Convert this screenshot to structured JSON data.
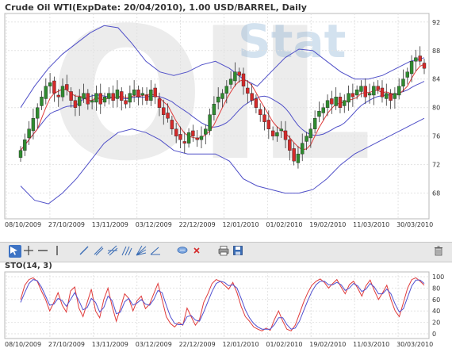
{
  "title": "Crude Oil WTI(ExpDate: 20/04/2010), 1.00 USD/BARREL, Daily",
  "watermark": {
    "left": "OIL",
    "right": "Stat"
  },
  "sto_title": "STO(14, 3)",
  "toolbar": {
    "tools": [
      "cursor-icon",
      "crosshair-icon",
      "horizontal-line-icon",
      "vertical-line-icon",
      "trendline-icon",
      "ray-icon",
      "parallel-channel-icon",
      "fibonacci-icon",
      "fan-icon",
      "text-balloon-icon",
      "delete-object-icon",
      "print-icon",
      "save-icon",
      "trash-icon"
    ]
  },
  "colors": {
    "up": "#2f8b2f",
    "down": "#d42a2a",
    "bands": "#5050c8",
    "ma": "#e03a3a",
    "sto_k": "#e03a3a",
    "sto_d": "#5050d0"
  },
  "chart_data": [
    {
      "type": "candlestick",
      "title": "Crude Oil WTI(ExpDate: 20/04/2010), 1.00 USD/BARREL, Daily",
      "x_tick_labels": [
        "08/10/2009",
        "27/10/2009",
        "13/11/2009",
        "03/12/2009",
        "22/12/2009",
        "12/01/2010",
        "01/02/2010",
        "19/02/2010",
        "11/03/2010",
        "30/03/2010"
      ],
      "y_tick_labels": [
        "92",
        "88",
        "84",
        "80",
        "76",
        "72",
        "68"
      ],
      "ylim": [
        64.4,
        93.2
      ],
      "close_approx": [
        74,
        75.5,
        77,
        78.5,
        80,
        81.5,
        83,
        83.5,
        82,
        81.5,
        83,
        82.5,
        81,
        80,
        81.5,
        82,
        80.5,
        81,
        82,
        80.5,
        81.5,
        82,
        81,
        82.5,
        81,
        80.5,
        82,
        82.5,
        81.5,
        82,
        81,
        82.5,
        81.5,
        80,
        79,
        78.5,
        77,
        76,
        75.5,
        75,
        76.5,
        76,
        75.5,
        76,
        77,
        79,
        80.5,
        81.5,
        82,
        83,
        84,
        85,
        84.5,
        83,
        82,
        81,
        80,
        79,
        78,
        77,
        76,
        76.5,
        77,
        75.5,
        74,
        72.5,
        73.5,
        75,
        76,
        77,
        78.5,
        79.5,
        80,
        81,
        80.5,
        81.5,
        80,
        81,
        82,
        81.5,
        82.5,
        83,
        81.5,
        82,
        83,
        82.5,
        81.5,
        82,
        81,
        82,
        83,
        84,
        85,
        86.5,
        87,
        86.5,
        85.5
      ],
      "bollinger_upper_approx": [
        80,
        83,
        85.5,
        87.5,
        89,
        90.5,
        91.5,
        91.2,
        89,
        86.5,
        85,
        84.5,
        85,
        86,
        86.5,
        85.5,
        84,
        83,
        85,
        87,
        88.2,
        88,
        86.5,
        85,
        84,
        84,
        84.5,
        85.5,
        86.5,
        87
      ],
      "bollinger_lower_approx": [
        69,
        67,
        66.5,
        68,
        70,
        72.5,
        75,
        76.5,
        77,
        76.5,
        75.5,
        74,
        73.5,
        73.5,
        73.5,
        72.5,
        70,
        69,
        68.5,
        68,
        68,
        68.5,
        70,
        72,
        73.5,
        74.5,
        75.5,
        76.5,
        77.5,
        78.5
      ]
    },
    {
      "type": "line",
      "title": "STO(14, 3)",
      "x_tick_labels": [
        "08/10/2009",
        "27/10/2009",
        "13/11/2009",
        "03/12/2009",
        "22/12/2009",
        "12/01/2010",
        "01/02/2010",
        "19/02/2010",
        "11/03/2010",
        "30/03/2010"
      ],
      "y_tick_labels": [
        "100",
        "80",
        "60",
        "40",
        "20",
        "0"
      ],
      "ylim": [
        0,
        100
      ],
      "series": [
        {
          "values": [
            60,
            85,
            95,
            98,
            92,
            75,
            60,
            40,
            55,
            72,
            50,
            38,
            75,
            82,
            45,
            30,
            55,
            78,
            40,
            28,
            60,
            80,
            48,
            22,
            45,
            70,
            62,
            40,
            58,
            66,
            44,
            52,
            70,
            88,
            60,
            30,
            18,
            12,
            20,
            15,
            45,
            30,
            15,
            25,
            55,
            70,
            88,
            95,
            92,
            85,
            78,
            90,
            72,
            48,
            30,
            22,
            12,
            8,
            5,
            10,
            6,
            25,
            40,
            22,
            8,
            5,
            15,
            35,
            55,
            72,
            85,
            92,
            96,
            90,
            80,
            88,
            95,
            82,
            70,
            86,
            92,
            80,
            66,
            84,
            94,
            76,
            60,
            72,
            85,
            60,
            40,
            30,
            55,
            80,
            95,
            98,
            92,
            85
          ]
        },
        {
          "values": [
            55,
            72,
            88,
            95,
            93,
            82,
            66,
            50,
            52,
            62,
            58,
            48,
            60,
            72,
            58,
            42,
            46,
            62,
            55,
            38,
            46,
            66,
            58,
            35,
            38,
            56,
            62,
            50,
            54,
            60,
            52,
            50,
            60,
            76,
            72,
            50,
            30,
            18,
            16,
            16,
            30,
            32,
            24,
            22,
            38,
            56,
            74,
            88,
            92,
            90,
            84,
            86,
            80,
            62,
            42,
            28,
            18,
            12,
            8,
            8,
            8,
            16,
            28,
            28,
            16,
            8,
            10,
            22,
            40,
            58,
            74,
            86,
            92,
            92,
            86,
            86,
            90,
            86,
            76,
            80,
            88,
            84,
            74,
            78,
            88,
            82,
            70,
            70,
            78,
            70,
            52,
            38,
            44,
            64,
            84,
            94,
            94,
            88
          ]
        }
      ]
    }
  ]
}
